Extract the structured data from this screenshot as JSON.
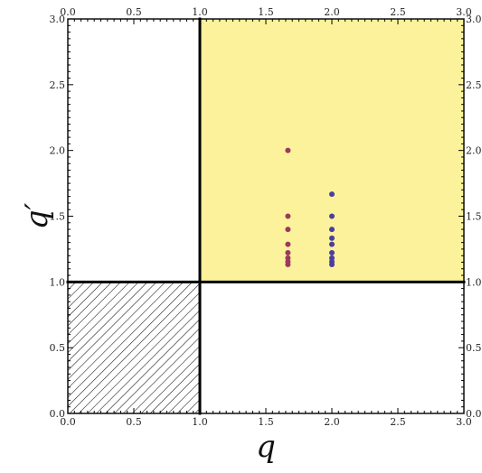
{
  "chart_data": {
    "type": "scatter",
    "title": "",
    "xlabel": "q",
    "ylabel": "q′",
    "xlim": [
      0.0,
      3.0
    ],
    "ylim": [
      0.0,
      3.0
    ],
    "x_ticks": [
      "0.0",
      "0.5",
      "1.0",
      "1.5",
      "2.0",
      "2.5",
      "3.0"
    ],
    "y_ticks": [
      "0.0",
      "0.5",
      "1.0",
      "1.5",
      "2.0",
      "2.5",
      "3.0"
    ],
    "grid": false,
    "regions": [
      {
        "x": [
          1.0,
          3.0
        ],
        "y": [
          1.0,
          3.0
        ],
        "fill": "#fbf29b",
        "pattern": "none"
      },
      {
        "x": [
          0.0,
          1.0
        ],
        "y": [
          0.0,
          1.0
        ],
        "fill": "none",
        "pattern": "diagonal-hatch"
      }
    ],
    "boundary_lines": [
      {
        "x": [
          1.0,
          1.0
        ],
        "y": [
          1.0,
          3.0
        ]
      },
      {
        "x": [
          1.0,
          3.0
        ],
        "y": [
          1.0,
          1.0
        ]
      },
      {
        "x": [
          0.0,
          1.0
        ],
        "y": [
          1.0,
          1.0
        ]
      },
      {
        "x": [
          1.0,
          1.0
        ],
        "y": [
          0.0,
          1.0
        ]
      }
    ],
    "series": [
      {
        "color": "#9b3a5e",
        "points": [
          [
            1.667,
            2.0
          ],
          [
            1.667,
            1.5
          ],
          [
            1.667,
            1.4
          ],
          [
            1.667,
            1.286
          ],
          [
            1.667,
            1.222
          ],
          [
            1.667,
            1.182
          ],
          [
            1.667,
            1.154
          ],
          [
            1.667,
            1.133
          ]
        ]
      },
      {
        "color": "#4a3ea0",
        "points": [
          [
            2.0,
            1.667
          ],
          [
            2.0,
            1.5
          ],
          [
            2.0,
            1.4
          ],
          [
            2.0,
            1.333
          ],
          [
            2.0,
            1.286
          ],
          [
            2.0,
            1.222
          ],
          [
            2.0,
            1.182
          ],
          [
            2.0,
            1.154
          ],
          [
            2.0,
            1.133
          ]
        ]
      }
    ]
  }
}
